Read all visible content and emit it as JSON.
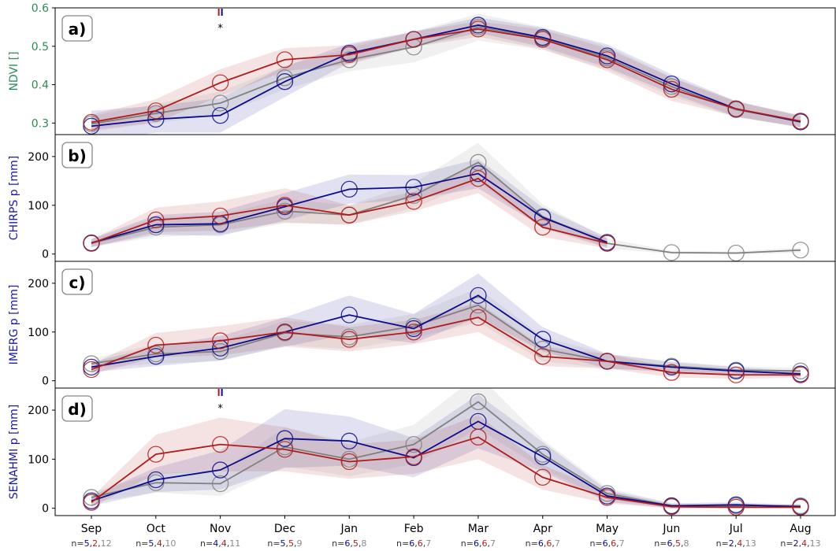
{
  "colors": {
    "blue": "#0b0b8c",
    "red": "#b01c1c",
    "gray": "#808080",
    "ndvi_label": "#2e8b57",
    "rain_label": "#1a1aa0",
    "n_blue": "#0b0b8c",
    "n_red": "#b01c1c",
    "n_gray": "#8a8a8a"
  },
  "months": [
    "Sep",
    "Oct",
    "Nov",
    "Dec",
    "Jan",
    "Feb",
    "Mar",
    "Apr",
    "May",
    "Jun",
    "Jul",
    "Aug"
  ],
  "counts": [
    [
      "5",
      "2",
      "12"
    ],
    [
      "5",
      "4",
      "10"
    ],
    [
      "4",
      "4",
      "11"
    ],
    [
      "5",
      "5",
      "9"
    ],
    [
      "6",
      "5",
      "8"
    ],
    [
      "6",
      "6",
      "7"
    ],
    [
      "6",
      "6",
      "7"
    ],
    [
      "6",
      "6",
      "7"
    ],
    [
      "6",
      "6",
      "7"
    ],
    [
      "6",
      "5",
      "8"
    ],
    [
      "2",
      "4",
      "13"
    ],
    [
      "2",
      "4",
      "13"
    ]
  ],
  "count_prefix": "n=",
  "count_sep": ",",
  "chart_data": [
    {
      "type": "line",
      "panel_label": "a)",
      "ylabel": "NDVI []",
      "ylabel_color": "ndvi_label",
      "ylim": [
        0.27,
        0.6
      ],
      "yticks": [
        0.3,
        0.4,
        0.5,
        0.6
      ],
      "ytick_labels": [
        "0.3",
        "0.4",
        "0.5",
        "0.6"
      ],
      "tick_color": "ndvi_label",
      "categories": [
        "Sep",
        "Oct",
        "Nov",
        "Dec",
        "Jan",
        "Feb",
        "Mar",
        "Apr",
        "May",
        "Jun",
        "Jul",
        "Aug"
      ],
      "series": [
        {
          "color": "blue",
          "values": [
            0.292,
            0.31,
            0.32,
            0.408,
            0.482,
            0.518,
            0.555,
            0.523,
            0.475,
            0.402,
            0.337,
            0.303
          ],
          "band": [
            0.04,
            0.035,
            0.045,
            0.04,
            0.025,
            0.02,
            0.02,
            0.025,
            0.03,
            0.025,
            0.02,
            0.015
          ]
        },
        {
          "color": "red",
          "values": [
            0.302,
            0.332,
            0.405,
            0.465,
            0.478,
            0.518,
            0.545,
            0.518,
            0.465,
            0.388,
            0.337,
            0.305
          ],
          "band": [
            0.02,
            0.03,
            0.035,
            0.03,
            0.025,
            0.02,
            0.02,
            0.025,
            0.03,
            0.03,
            0.02,
            0.015
          ]
        },
        {
          "color": "gray",
          "values": [
            0.298,
            0.325,
            0.352,
            0.418,
            0.465,
            0.498,
            0.55,
            0.52,
            0.47,
            0.395,
            0.335,
            0.305
          ],
          "band": [
            0.02,
            0.025,
            0.03,
            0.03,
            0.03,
            0.04,
            0.035,
            0.03,
            0.03,
            0.025,
            0.02,
            0.015
          ]
        }
      ],
      "annotations": [
        {
          "category": "Nov",
          "text": "*"
        }
      ]
    },
    {
      "type": "line",
      "panel_label": "b)",
      "ylabel": "CHIRPS p [mm]",
      "ylabel_color": "rain_label",
      "ylim": [
        -15,
        245
      ],
      "yticks": [
        0,
        100,
        200
      ],
      "ytick_labels": [
        "0",
        "100",
        "200"
      ],
      "tick_color": "#000000",
      "categories": [
        "Sep",
        "Oct",
        "Nov",
        "Dec",
        "Jan",
        "Feb",
        "Mar",
        "Apr",
        "May",
        "Jun",
        "Jul",
        "Aug"
      ],
      "series": [
        {
          "color": "blue",
          "values": [
            23,
            60,
            62,
            97,
            133,
            137,
            165,
            75,
            24,
            null,
            null,
            null
          ],
          "band": [
            8,
            20,
            25,
            28,
            30,
            25,
            30,
            20,
            10,
            0,
            0,
            0
          ]
        },
        {
          "color": "red",
          "values": [
            22,
            70,
            78,
            100,
            80,
            108,
            155,
            55,
            22,
            null,
            null,
            null
          ],
          "band": [
            8,
            25,
            30,
            35,
            20,
            20,
            30,
            20,
            10,
            0,
            0,
            0
          ]
        },
        {
          "color": "gray",
          "values": [
            22,
            55,
            60,
            88,
            80,
            120,
            188,
            77,
            22,
            3,
            2,
            8
          ],
          "band": [
            8,
            20,
            20,
            25,
            20,
            25,
            40,
            25,
            10,
            3,
            3,
            5
          ]
        }
      ],
      "annotations": []
    },
    {
      "type": "line",
      "panel_label": "c)",
      "ylabel": "IMERG p [mm]",
      "ylabel_color": "rain_label",
      "ylim": [
        -15,
        245
      ],
      "yticks": [
        0,
        100,
        200
      ],
      "ytick_labels": [
        "0",
        "100",
        "200"
      ],
      "tick_color": "#000000",
      "categories": [
        "Sep",
        "Oct",
        "Nov",
        "Dec",
        "Jan",
        "Feb",
        "Mar",
        "Apr",
        "May",
        "Jun",
        "Jul",
        "Aug"
      ],
      "series": [
        {
          "color": "blue",
          "values": [
            28,
            50,
            67,
            100,
            135,
            107,
            175,
            85,
            40,
            28,
            20,
            14
          ],
          "band": [
            10,
            20,
            25,
            30,
            40,
            30,
            45,
            25,
            15,
            10,
            8,
            6
          ]
        },
        {
          "color": "red",
          "values": [
            23,
            73,
            82,
            100,
            85,
            100,
            130,
            50,
            40,
            17,
            12,
            12
          ],
          "band": [
            10,
            25,
            30,
            30,
            25,
            25,
            30,
            20,
            15,
            10,
            8,
            6
          ]
        },
        {
          "color": "gray",
          "values": [
            35,
            55,
            60,
            98,
            90,
            112,
            155,
            65,
            40,
            30,
            22,
            20
          ],
          "band": [
            10,
            20,
            20,
            25,
            25,
            25,
            35,
            25,
            15,
            10,
            8,
            6
          ]
        }
      ],
      "annotations": []
    },
    {
      "type": "line",
      "panel_label": "d)",
      "ylabel": "SENAHMI p [mm]",
      "ylabel_color": "rain_label",
      "ylim": [
        -15,
        245
      ],
      "yticks": [
        0,
        100,
        200
      ],
      "ytick_labels": [
        "0",
        "100",
        "200"
      ],
      "tick_color": "#000000",
      "categories": [
        "Sep",
        "Oct",
        "Nov",
        "Dec",
        "Jan",
        "Feb",
        "Mar",
        "Apr",
        "May",
        "Jun",
        "Jul",
        "Aug"
      ],
      "series": [
        {
          "color": "blue",
          "values": [
            15,
            58,
            78,
            142,
            137,
            103,
            177,
            105,
            25,
            5,
            7,
            3
          ],
          "band": [
            10,
            25,
            40,
            60,
            50,
            40,
            55,
            30,
            12,
            5,
            5,
            3
          ]
        },
        {
          "color": "red",
          "values": [
            12,
            110,
            130,
            120,
            95,
            105,
            145,
            63,
            22,
            3,
            2,
            2
          ],
          "band": [
            10,
            40,
            55,
            45,
            35,
            35,
            45,
            25,
            12,
            4,
            3,
            3
          ]
        },
        {
          "color": "gray",
          "values": [
            22,
            52,
            50,
            125,
            100,
            130,
            217,
            110,
            30,
            5,
            5,
            5
          ],
          "band": [
            10,
            20,
            25,
            40,
            35,
            40,
            55,
            30,
            12,
            5,
            5,
            4
          ]
        }
      ],
      "annotations": [
        {
          "category": "Nov",
          "text": "*"
        }
      ]
    }
  ]
}
